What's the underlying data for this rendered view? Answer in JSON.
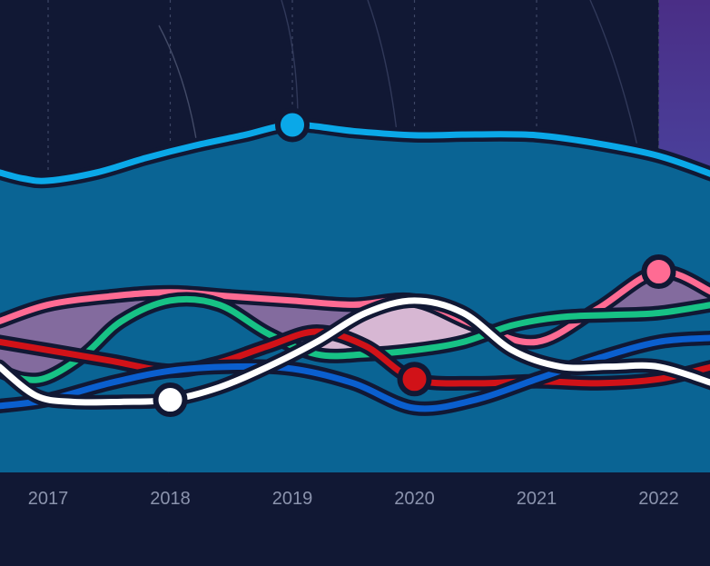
{
  "chart_data": {
    "type": "line",
    "x": [
      2017,
      2018,
      2019,
      2020,
      2021,
      2022
    ],
    "x_tick_labels": [
      "2017",
      "2018",
      "2019",
      "2020",
      "2021",
      "2022"
    ],
    "xlim": [
      2016.6,
      2022.44
    ],
    "ylim": [
      0,
      100
    ],
    "title": "",
    "xlabel": "",
    "ylabel": "",
    "grid": "vertical-dotted",
    "legend": "none",
    "highlight_band": {
      "x_start": 2022.0,
      "x_end": 2022.44,
      "color_top": "#4a2e86",
      "color_bottom": "#4a5fc0"
    },
    "background_color": "#111834",
    "series": [
      {
        "color": "#0aa8e8",
        "fill": "#0a6494",
        "x": [
          2016.6,
          2016.8,
          2017.0,
          2017.4,
          2017.8,
          2018.2,
          2018.6,
          2019.0,
          2019.5,
          2020.0,
          2020.5,
          2021.0,
          2021.5,
          2022.0,
          2022.44
        ],
        "y": [
          84,
          82.5,
          82,
          84,
          87.5,
          90.5,
          93,
          95.5,
          94,
          93,
          93.2,
          93,
          91,
          88,
          83.5
        ],
        "marker_at": 2019.0
      },
      {
        "color": "#ff6b93",
        "x": [
          2016.6,
          2017.0,
          2017.5,
          2018.0,
          2018.5,
          2019.0,
          2019.5,
          2020.0,
          2020.5,
          2021.0,
          2021.5,
          2022.0,
          2022.44
        ],
        "y": [
          48,
          52,
          54,
          55,
          54,
          53,
          52,
          53,
          47,
          43,
          51,
          60,
          55
        ],
        "marker_at": 2022.0
      },
      {
        "color": "#17c285",
        "x": [
          2016.6,
          2016.8,
          2017.0,
          2017.3,
          2017.6,
          2018.0,
          2018.4,
          2018.8,
          2019.2,
          2019.6,
          2020.0,
          2020.4,
          2020.8,
          2021.2,
          2021.6,
          2022.0,
          2022.44
        ],
        "y": [
          36,
          34,
          34.5,
          40,
          48,
          53,
          52,
          45,
          40,
          40,
          41,
          43,
          47,
          49,
          49.5,
          50,
          52
        ]
      },
      {
        "color": "#d11218",
        "x": [
          2016.6,
          2017.0,
          2017.5,
          2018.0,
          2018.4,
          2018.8,
          2019.2,
          2019.6,
          2020.0,
          2020.5,
          2021.0,
          2021.5,
          2022.0,
          2022.44
        ],
        "y": [
          43,
          41,
          38.5,
          36,
          38,
          42,
          45.5,
          42,
          34,
          33,
          33.5,
          33,
          34,
          37
        ],
        "marker_at": 2020.0
      },
      {
        "color": "#0a5fcf",
        "x": [
          2016.6,
          2017.0,
          2017.5,
          2018.0,
          2018.5,
          2019.0,
          2019.5,
          2020.0,
          2020.5,
          2021.0,
          2021.5,
          2022.0,
          2022.44
        ],
        "y": [
          27.5,
          29,
          33,
          36,
          37,
          36.5,
          33,
          27,
          29,
          34,
          39,
          43,
          44
        ]
      },
      {
        "color": "#ffffff",
        "x": [
          2016.6,
          2016.9,
          2017.2,
          2017.6,
          2018.0,
          2018.4,
          2018.8,
          2019.2,
          2019.6,
          2020.0,
          2020.4,
          2020.8,
          2021.2,
          2021.6,
          2022.0,
          2022.44
        ],
        "y": [
          37,
          30,
          28.5,
          28.5,
          29,
          32,
          37,
          43,
          50,
          53,
          50,
          41,
          37,
          37,
          37,
          33
        ],
        "marker_at": 2018.0
      }
    ],
    "overlap_fills": [
      {
        "between": [
          "#ff6b93",
          "#17c285"
        ],
        "color": "#8a6b9e",
        "opacity": 0.95
      },
      {
        "between": [
          "#ffffff",
          "#17c285"
        ],
        "color": "#e6c4dc",
        "opacity": 0.85
      }
    ]
  }
}
